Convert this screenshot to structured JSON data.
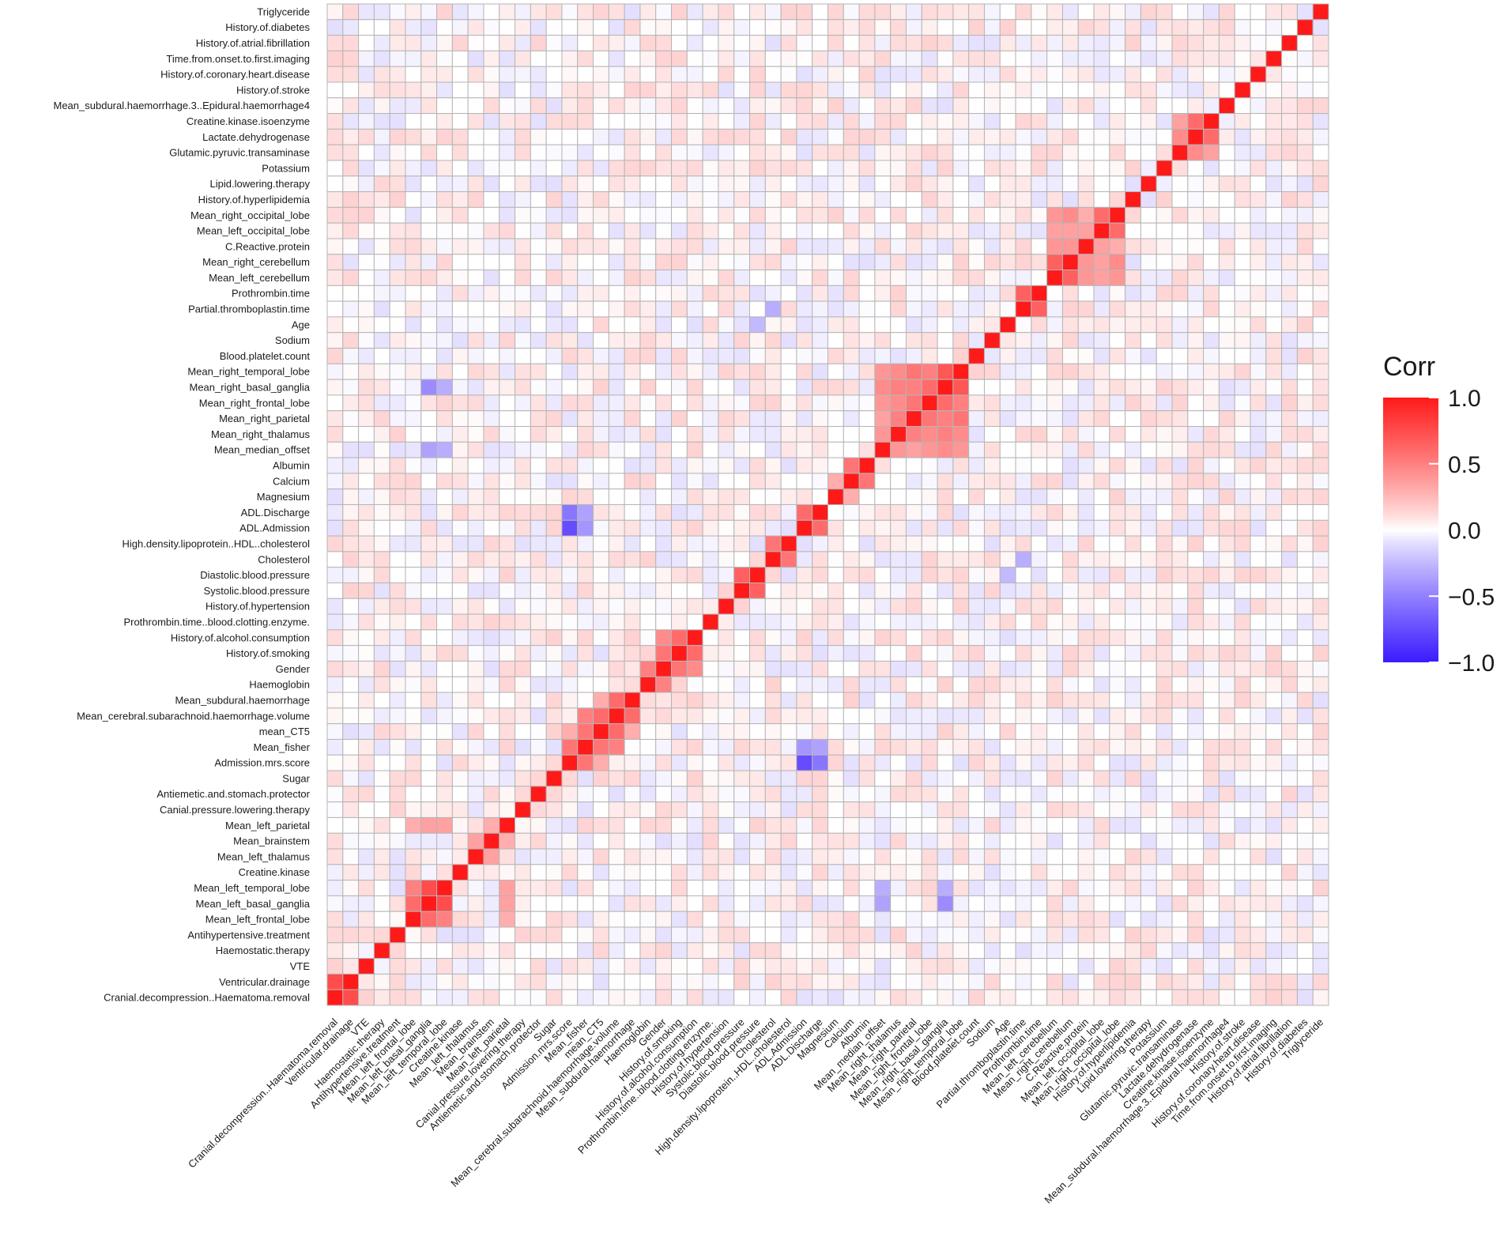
{
  "chart_data": {
    "type": "heatmap",
    "title": "",
    "xlabel": "",
    "ylabel": "",
    "variables": [
      "Cranial.decompression..Haematoma.removal",
      "Ventricular.drainage",
      "VTE",
      "Haemostatic.therapy",
      "Antihypertensive.treatment",
      "Mean_left_frontal_lobe",
      "Mean_left_basal_ganglia",
      "Mean_left_temporal_lobe",
      "Creatine.kinase",
      "Mean_left_thalamus",
      "Mean_brainstem",
      "Mean_left_parietal",
      "Canial.pressure.lowering.therapy",
      "Antiemetic.and.stomach.protector",
      "Sugar",
      "Admission.mrs.score",
      "Mean_fisher",
      "mean_CT5",
      "Mean_cerebral.subarachnoid.haemorrhage.volume",
      "Mean_subdural.haemorrhage",
      "Haemoglobin",
      "Gender",
      "History.of.smoking",
      "History.of.alcohol.consumption",
      "Prothrombin.time..blood.clotting.enzyme.",
      "History.of.hypertension",
      "Systolic.blood.pressure",
      "Diastolic.blood.pressure",
      "Cholesterol",
      "High.density.lipoprotein..HDL..cholesterol",
      "ADL.Admission",
      "ADL.Discharge",
      "Magnesium",
      "Calcium",
      "Albumin",
      "Mean_median_offset",
      "Mean_right_thalamus",
      "Mean_right_parietal",
      "Mean_right_frontal_lobe",
      "Mean_right_basal_ganglia",
      "Mean_right_temporal_lobe",
      "Blood.platelet.count",
      "Sodium",
      "Age",
      "Partial.thromboplastin.time",
      "Prothrombin.time",
      "Mean_left_cerebellum",
      "Mean_right_cerebellum",
      "C.Reactive.protein",
      "Mean_left_occipital_lobe",
      "Mean_right_occipital_lobe",
      "History.of.hyperlipidemia",
      "Lipid.lowering.therapy",
      "Potassium",
      "Glutamic.pyruvic.transaminase",
      "Lactate.dehydrogenase",
      "Creatine.kinase.isoenzyme",
      "Mean_subdural.haemorrhage.3..Epidural.haemorrhage4",
      "History.of.stroke",
      "History.of.coronary.heart.disease",
      "Time.from.onset.to.first.imaging",
      "History.of.atrial.fibrillation",
      "History.of.diabetes",
      "Triglyceride"
    ],
    "value_range": [
      -1.0,
      1.0
    ],
    "diagonal": 1.0,
    "strong_pairs": [
      {
        "a": "Cranial.decompression..Haematoma.removal",
        "b": "Ventricular.drainage",
        "value": 0.75
      },
      {
        "a": "Mean_left_frontal_lobe",
        "b": "Mean_left_basal_ganglia",
        "value": 0.6
      },
      {
        "a": "Mean_left_frontal_lobe",
        "b": "Mean_left_temporal_lobe",
        "value": 0.5
      },
      {
        "a": "Mean_left_basal_ganglia",
        "b": "Mean_left_temporal_lobe",
        "value": 0.75
      },
      {
        "a": "Mean_left_frontal_lobe",
        "b": "Mean_left_parietal",
        "value": 0.3
      },
      {
        "a": "Mean_left_basal_ganglia",
        "b": "Mean_left_parietal",
        "value": 0.35
      },
      {
        "a": "Mean_left_temporal_lobe",
        "b": "Mean_left_parietal",
        "value": 0.35
      },
      {
        "a": "Mean_left_thalamus",
        "b": "Mean_brainstem",
        "value": 0.35
      },
      {
        "a": "Mean_brainstem",
        "b": "Mean_left_parietal",
        "value": 0.3
      },
      {
        "a": "Admission.mrs.score",
        "b": "Mean_fisher",
        "value": 0.55
      },
      {
        "a": "Admission.mrs.score",
        "b": "mean_CT5",
        "value": 0.3
      },
      {
        "a": "Mean_fisher",
        "b": "mean_CT5",
        "value": 0.55
      },
      {
        "a": "Mean_fisher",
        "b": "Mean_cerebral.subarachnoid.haemorrhage.volume",
        "value": 0.5
      },
      {
        "a": "mean_CT5",
        "b": "Mean_cerebral.subarachnoid.haemorrhage.volume",
        "value": 0.6
      },
      {
        "a": "mean_CT5",
        "b": "Mean_subdural.haemorrhage",
        "value": 0.3
      },
      {
        "a": "Mean_cerebral.subarachnoid.haemorrhage.volume",
        "b": "Mean_subdural.haemorrhage",
        "value": 0.6
      },
      {
        "a": "Haemoglobin",
        "b": "Gender",
        "value": 0.5
      },
      {
        "a": "Gender",
        "b": "History.of.smoking",
        "value": 0.55
      },
      {
        "a": "Gender",
        "b": "History.of.alcohol.consumption",
        "value": 0.45
      },
      {
        "a": "History.of.smoking",
        "b": "History.of.alcohol.consumption",
        "value": 0.6
      },
      {
        "a": "Systolic.blood.pressure",
        "b": "Diastolic.blood.pressure",
        "value": 0.65
      },
      {
        "a": "Cholesterol",
        "b": "High.density.lipoprotein..HDL..cholesterol",
        "value": 0.55
      },
      {
        "a": "ADL.Admission",
        "b": "ADL.Discharge",
        "value": 0.6
      },
      {
        "a": "Magnesium",
        "b": "Calcium",
        "value": 0.3
      },
      {
        "a": "Calcium",
        "b": "Albumin",
        "value": 0.55
      },
      {
        "a": "ADL.Admission",
        "b": "Admission.mrs.score",
        "value": -0.75
      },
      {
        "a": "ADL.Discharge",
        "b": "Admission.mrs.score",
        "value": -0.55
      },
      {
        "a": "ADL.Admission",
        "b": "Mean_fisher",
        "value": -0.4
      },
      {
        "a": "ADL.Discharge",
        "b": "Mean_fisher",
        "value": -0.35
      },
      {
        "a": "Mean_median_offset",
        "b": "Mean_right_thalamus",
        "value": 0.4
      },
      {
        "a": "Mean_median_offset",
        "b": "Mean_right_parietal",
        "value": 0.35
      },
      {
        "a": "Mean_median_offset",
        "b": "Mean_right_frontal_lobe",
        "value": 0.4
      },
      {
        "a": "Mean_median_offset",
        "b": "Mean_right_basal_ganglia",
        "value": 0.45
      },
      {
        "a": "Mean_median_offset",
        "b": "Mean_right_temporal_lobe",
        "value": 0.4
      },
      {
        "a": "Mean_right_thalamus",
        "b": "Mean_right_parietal",
        "value": 0.5
      },
      {
        "a": "Mean_right_thalamus",
        "b": "Mean_right_frontal_lobe",
        "value": 0.45
      },
      {
        "a": "Mean_right_thalamus",
        "b": "Mean_right_basal_ganglia",
        "value": 0.5
      },
      {
        "a": "Mean_right_thalamus",
        "b": "Mean_right_temporal_lobe",
        "value": 0.45
      },
      {
        "a": "Mean_right_parietal",
        "b": "Mean_right_frontal_lobe",
        "value": 0.55
      },
      {
        "a": "Mean_right_parietal",
        "b": "Mean_right_basal_ganglia",
        "value": 0.5
      },
      {
        "a": "Mean_right_parietal",
        "b": "Mean_right_temporal_lobe",
        "value": 0.55
      },
      {
        "a": "Mean_right_frontal_lobe",
        "b": "Mean_right_basal_ganglia",
        "value": 0.6
      },
      {
        "a": "Mean_right_frontal_lobe",
        "b": "Mean_right_temporal_lobe",
        "value": 0.5
      },
      {
        "a": "Mean_right_basal_ganglia",
        "b": "Mean_right_temporal_lobe",
        "value": 0.7
      },
      {
        "a": "Mean_left_basal_ganglia",
        "b": "Mean_right_basal_ganglia",
        "value": -0.45
      },
      {
        "a": "Mean_left_temporal_lobe",
        "b": "Mean_right_basal_ganglia",
        "value": -0.3
      },
      {
        "a": "Mean_left_basal_ganglia",
        "b": "Mean_median_offset",
        "value": -0.35
      },
      {
        "a": "Mean_left_temporal_lobe",
        "b": "Mean_median_offset",
        "value": -0.3
      },
      {
        "a": "Partial.thromboplastin.time",
        "b": "Prothrombin.time",
        "value": 0.65
      },
      {
        "a": "Mean_left_cerebellum",
        "b": "Mean_right_cerebellum",
        "value": 0.65
      },
      {
        "a": "Mean_left_cerebellum",
        "b": "C.Reactive.protein",
        "value": 0.4
      },
      {
        "a": "Mean_left_cerebellum",
        "b": "Mean_left_occipital_lobe",
        "value": 0.35
      },
      {
        "a": "Mean_left_cerebellum",
        "b": "Mean_right_occipital_lobe",
        "value": 0.4
      },
      {
        "a": "Mean_right_cerebellum",
        "b": "C.Reactive.protein",
        "value": 0.4
      },
      {
        "a": "Mean_right_cerebellum",
        "b": "Mean_left_occipital_lobe",
        "value": 0.35
      },
      {
        "a": "Mean_right_cerebellum",
        "b": "Mean_right_occipital_lobe",
        "value": 0.45
      },
      {
        "a": "Mean_left_occipital_lobe",
        "b": "Mean_right_occipital_lobe",
        "value": 0.6
      },
      {
        "a": "C.Reactive.protein",
        "b": "Mean_left_occipital_lobe",
        "value": 0.35
      },
      {
        "a": "C.Reactive.protein",
        "b": "Mean_right_occipital_lobe",
        "value": 0.3
      },
      {
        "a": "Lactate.dehydrogenase",
        "b": "Creatine.kinase.isoenzyme",
        "value": 0.6
      },
      {
        "a": "Glutamic.pyruvic.transaminase",
        "b": "Lactate.dehydrogenase",
        "value": 0.45
      },
      {
        "a": "Glutamic.pyruvic.transaminase",
        "b": "Creatine.kinase.isoenzyme",
        "value": 0.35
      },
      {
        "a": "Cholesterol",
        "b": "Partial.thromboplastin.time",
        "value": -0.3
      },
      {
        "a": "Diastolic.blood.pressure",
        "b": "Age",
        "value": -0.25
      }
    ],
    "legend": {
      "title": "Corr",
      "ticks": [
        "1.0",
        "0.5",
        "0.0",
        "−0.5",
        "−1.0"
      ],
      "tick_values": [
        1.0,
        0.5,
        0.0,
        -0.5,
        -1.0
      ],
      "position": "right",
      "colors": {
        "low": "#3b1bff",
        "mid": "#ffffff",
        "high": "#ff1a1a"
      }
    },
    "grid": true
  }
}
